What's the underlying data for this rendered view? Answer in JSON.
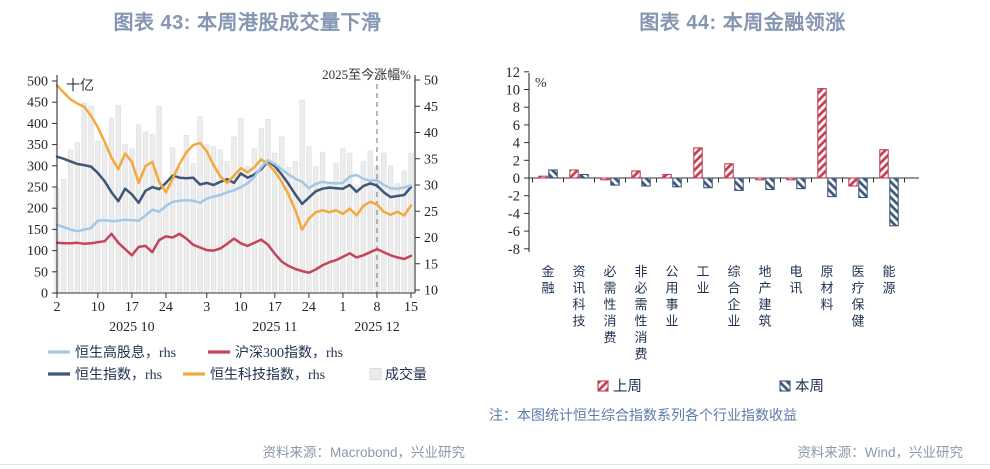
{
  "page": {
    "left_source": "资料来源：Macrobond，兴业研究",
    "right_source": "资料来源：Wind，兴业研究",
    "right_note": "注：本图统计恒生综合指数系列各个行业指数收益"
  },
  "chart_data": [
    {
      "type": "line+bar",
      "title": "图表 43: 本周港股成交量下滑",
      "left_axis": {
        "label": "十亿",
        "min": 0,
        "max": 500,
        "step": 50
      },
      "right_axis": {
        "label": "2025至今涨幅%",
        "min": 10,
        "max": 50,
        "step": 5
      },
      "x_ticks": [
        {
          "label": "2",
          "day": 0
        },
        {
          "label": "10",
          "day": 6
        },
        {
          "label": "17",
          "day": 11
        },
        {
          "label": "24",
          "day": 16
        },
        {
          "label": "3",
          "day": 22
        },
        {
          "label": "10",
          "day": 27
        },
        {
          "label": "17",
          "day": 32
        },
        {
          "label": "24",
          "day": 37
        },
        {
          "label": "1",
          "day": 42
        },
        {
          "label": "8",
          "day": 47
        },
        {
          "label": "15",
          "day": 52
        }
      ],
      "month_labels": [
        {
          "label": "2025 10",
          "day": 11
        },
        {
          "label": "2025 11",
          "day": 32
        },
        {
          "label": "2025 12",
          "day": 47
        }
      ],
      "dashed_marker_day": 47,
      "bars": {
        "key": "volume",
        "name": "成交量",
        "axis": "left",
        "color": "#ececec",
        "border": "#dcdcdc",
        "values": [
          247,
          268,
          337,
          355,
          448,
          440,
          358,
          350,
          412,
          442,
          350,
          340,
          397,
          380,
          374,
          440,
          260,
          343,
          296,
          372,
          305,
          415,
          350,
          345,
          338,
          310,
          368,
          412,
          298,
          340,
          388,
          410,
          330,
          368,
          296,
          310,
          455,
          345,
          298,
          332,
          260,
          305,
          340,
          330,
          253,
          310,
          335,
          298,
          330,
          300,
          258,
          288,
          330
        ]
      },
      "series": [
        {
          "key": "hs_high_dividend",
          "name": "恒生高股息，rhs",
          "axis": "right",
          "color": "#a3c7e6",
          "values": [
            22.4,
            22.0,
            21.5,
            21.2,
            21.5,
            21.8,
            23.2,
            23.3,
            23.1,
            23.2,
            23.4,
            23.3,
            23.2,
            24.2,
            25.3,
            24.9,
            26.0,
            26.8,
            27.0,
            27.1,
            27.0,
            26.6,
            27.4,
            27.8,
            28.1,
            28.6,
            29.0,
            29.6,
            30.3,
            31.5,
            33.4,
            34.7,
            34.0,
            33.0,
            32.0,
            31.2,
            30.6,
            29.4,
            30.2,
            30.6,
            30.4,
            30.3,
            30.4,
            31.6,
            31.9,
            31.2,
            30.8,
            30.9,
            30.0,
            29.4,
            29.3,
            29.5,
            29.9
          ]
        },
        {
          "key": "csi300",
          "name": "沪深300指数，rhs",
          "axis": "right",
          "color": "#c4445a",
          "values": [
            19.0,
            18.9,
            18.9,
            19.0,
            18.8,
            18.9,
            19.1,
            19.3,
            20.7,
            19.0,
            17.8,
            16.6,
            18.2,
            18.4,
            17.2,
            19.5,
            20.2,
            20.0,
            20.7,
            19.8,
            18.6,
            18.1,
            17.6,
            17.5,
            17.9,
            18.8,
            19.8,
            18.9,
            18.4,
            19.0,
            19.6,
            18.6,
            16.9,
            15.4,
            14.6,
            14.0,
            13.6,
            13.3,
            13.9,
            14.7,
            15.3,
            15.7,
            16.3,
            17.0,
            16.2,
            16.6,
            17.2,
            17.8,
            17.2,
            16.6,
            16.2,
            15.9,
            16.5
          ]
        },
        {
          "key": "hsi",
          "name": "恒生指数，rhs",
          "axis": "right",
          "color": "#3e5677",
          "values": [
            35.4,
            35.0,
            34.5,
            34.0,
            33.8,
            33.5,
            32.3,
            30.7,
            28.6,
            26.9,
            29.3,
            28.2,
            26.6,
            28.9,
            29.6,
            29.2,
            30.4,
            31.8,
            31.4,
            31.3,
            31.4,
            30.1,
            30.4,
            30.0,
            30.6,
            31.1,
            30.4,
            32.2,
            31.4,
            32.0,
            33.0,
            34.5,
            33.6,
            32.0,
            30.2,
            28.2,
            26.4,
            27.6,
            28.8,
            29.3,
            29.5,
            29.4,
            29.3,
            30.0,
            28.7,
            29.8,
            30.3,
            29.9,
            28.6,
            27.7,
            27.9,
            28.1,
            29.6
          ]
        },
        {
          "key": "hstech",
          "name": "恒生科技指数，rhs",
          "axis": "right",
          "color": "#f2a93e",
          "values": [
            49.0,
            47.6,
            46.3,
            45.5,
            44.9,
            43.2,
            41.0,
            38.2,
            35.2,
            33.0,
            36.0,
            34.4,
            30.4,
            33.6,
            34.4,
            30.6,
            28.6,
            31.2,
            34.0,
            36.2,
            37.6,
            38.0,
            36.4,
            33.8,
            31.6,
            30.4,
            31.8,
            33.2,
            32.4,
            33.4,
            34.9,
            34.0,
            32.6,
            30.6,
            28.2,
            25.2,
            21.5,
            23.6,
            24.8,
            25.2,
            24.8,
            25.2,
            24.5,
            25.5,
            24.2,
            26.0,
            26.8,
            26.3,
            24.9,
            24.3,
            24.9,
            24.2,
            26.1
          ]
        }
      ],
      "legend_rows": [
        [
          "hs_high_dividend",
          "csi300"
        ],
        [
          "hsi",
          "hstech",
          "volume"
        ]
      ]
    },
    {
      "type": "bar",
      "title": "图表 44: 本周金融领涨",
      "unit_label": "%",
      "ylim": [
        -8,
        12
      ],
      "ystep": 2,
      "categories": [
        "金融",
        "资讯科技",
        "必需性消费",
        "非必需性消费",
        "公用事业",
        "工业",
        "综合企业",
        "地产建筑",
        "电讯",
        "原材料",
        "医疗保健",
        "能源"
      ],
      "series": [
        {
          "key": "last_week",
          "name": "上周",
          "color": "#c23f55",
          "hatch": "down",
          "values": [
            0.2,
            0.9,
            -0.2,
            0.8,
            0.4,
            3.4,
            1.6,
            -0.2,
            -0.2,
            10.1,
            -0.9,
            3.2
          ]
        },
        {
          "key": "this_week",
          "name": "本周",
          "color": "#3e5677",
          "hatch": "up",
          "values": [
            0.9,
            0.4,
            -0.8,
            -0.9,
            -1.0,
            -1.1,
            -1.4,
            -1.3,
            -1.2,
            -2.1,
            -2.2,
            -5.4
          ]
        }
      ],
      "legend_position": "bottom"
    }
  ]
}
